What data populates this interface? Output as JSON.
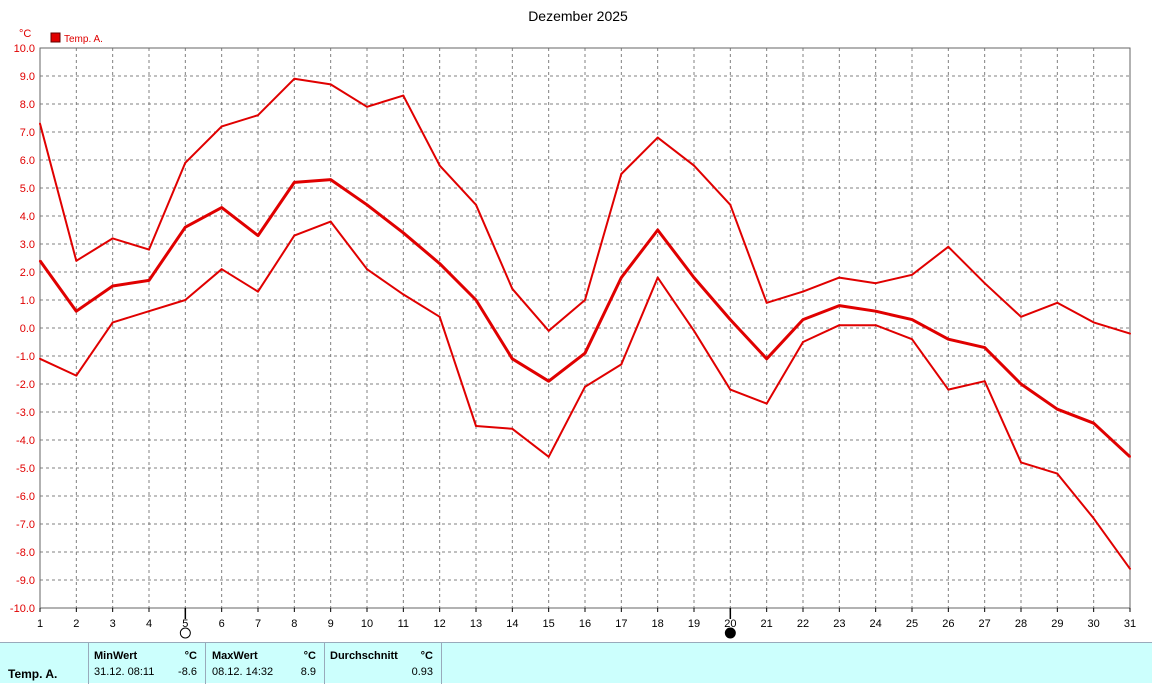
{
  "colors": {
    "line": "#e00000",
    "grid": "#808080",
    "footer_bg": "#ccfffd"
  },
  "chart_data": {
    "type": "line",
    "title": "Dezember 2025",
    "ylabel": "°C",
    "xlabel": "",
    "ylim": [
      -10,
      10
    ],
    "xlim": [
      1,
      31
    ],
    "grid": true,
    "legend": {
      "entries": [
        "Temp. A."
      ],
      "position": "top-left"
    },
    "x": [
      1,
      2,
      3,
      4,
      5,
      6,
      7,
      8,
      9,
      10,
      11,
      12,
      13,
      14,
      15,
      16,
      17,
      18,
      19,
      20,
      21,
      22,
      23,
      24,
      25,
      26,
      27,
      28,
      29,
      30,
      31
    ],
    "x_ticks": [
      "1",
      "2",
      "3",
      "4",
      "5",
      "6",
      "7",
      "8",
      "9",
      "10",
      "11",
      "12",
      "13",
      "14",
      "15",
      "16",
      "17",
      "18",
      "19",
      "20",
      "21",
      "22",
      "23",
      "24",
      "25",
      "26",
      "27",
      "28",
      "29",
      "30",
      "31"
    ],
    "y_ticks": [
      "10.0",
      "9.0",
      "8.0",
      "7.0",
      "6.0",
      "5.0",
      "4.0",
      "3.0",
      "2.0",
      "1.0",
      "0.0",
      "-1.0",
      "-2.0",
      "-3.0",
      "-4.0",
      "-5.0",
      "-6.0",
      "-7.0",
      "-8.0",
      "-9.0",
      "-10.0"
    ],
    "series": [
      {
        "role": "max",
        "values": [
          7.3,
          2.4,
          3.2,
          2.8,
          5.9,
          7.2,
          7.6,
          8.9,
          8.7,
          7.9,
          8.3,
          5.8,
          4.4,
          1.4,
          -0.1,
          1.0,
          5.5,
          6.8,
          5.8,
          4.4,
          0.9,
          1.3,
          1.8,
          1.6,
          1.9,
          2.9,
          1.6,
          0.4,
          0.9,
          0.2,
          -0.2
        ]
      },
      {
        "role": "mean",
        "values": [
          2.4,
          0.6,
          1.5,
          1.7,
          3.6,
          4.3,
          3.3,
          5.2,
          5.3,
          4.4,
          3.4,
          2.3,
          1.0,
          -1.1,
          -1.9,
          -0.9,
          1.8,
          3.5,
          1.8,
          0.3,
          -1.1,
          0.3,
          0.8,
          0.6,
          0.3,
          -0.4,
          -0.7,
          -2.0,
          -2.9,
          -3.4,
          -4.6
        ]
      },
      {
        "role": "min",
        "values": [
          -1.1,
          -1.7,
          0.2,
          0.6,
          1.0,
          2.1,
          1.3,
          3.3,
          3.8,
          2.1,
          1.2,
          0.4,
          -3.5,
          -3.6,
          -4.6,
          -2.1,
          -1.3,
          1.8,
          -0.1,
          -2.2,
          -2.7,
          -0.5,
          0.1,
          0.1,
          -0.4,
          -2.2,
          -1.9,
          -4.8,
          -5.2,
          -6.8,
          -8.6
        ]
      }
    ],
    "moon_phases": [
      {
        "day": 5,
        "phase": "full-moon-icon"
      },
      {
        "day": 20,
        "phase": "new-moon-icon"
      }
    ]
  },
  "footer": {
    "row_label": "Temp. A.",
    "min": {
      "header": "MinWert",
      "unit": "°C",
      "date": "31.12.  08:11",
      "value": "-8.6"
    },
    "max": {
      "header": "MaxWert",
      "unit": "°C",
      "date": "08.12.  14:32",
      "value": "8.9"
    },
    "avg": {
      "header": "Durchschnitt",
      "unit": "°C",
      "value": "0.93"
    }
  }
}
